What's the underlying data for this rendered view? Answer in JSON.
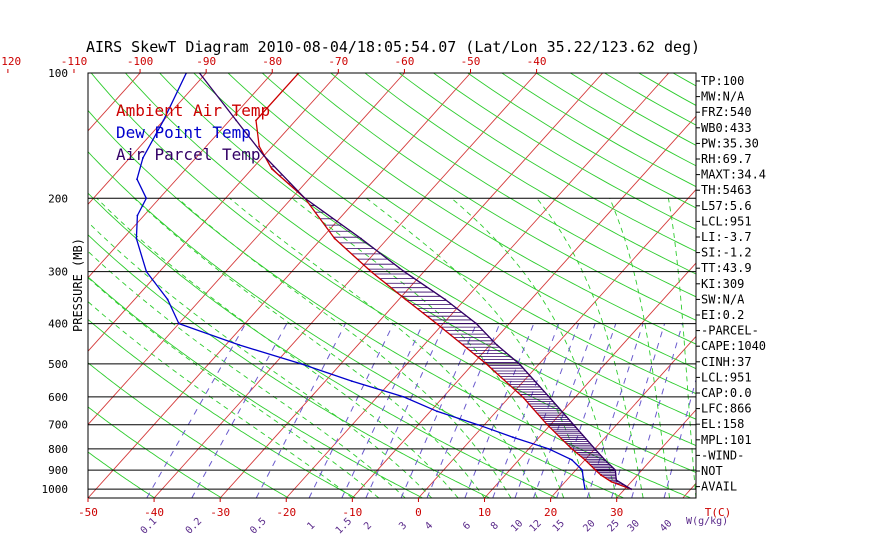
{
  "chart_data": {
    "type": "line",
    "title": "AIRS SkewT Diagram 2010-08-04/18:05:54.07 (Lat/Lon 35.22/123.62 deg)",
    "ylabel": "PRESSURE (MB)",
    "xlabel": "T(C)",
    "mixing_label": "W(g/kg)",
    "pressure_levels": [
      100,
      200,
      300,
      400,
      500,
      600,
      700,
      800,
      900,
      1000
    ],
    "top_temp_ticks": [
      -120,
      -110,
      -100,
      -90,
      -80,
      -70,
      -60,
      -50,
      -40
    ],
    "bottom_temp_ticks": [
      -50,
      -40,
      -30,
      -20,
      -10,
      0,
      10,
      20,
      30
    ],
    "mixing_ratio_ticks": [
      "0.1",
      "0.2",
      "0.5",
      "1",
      "1.5",
      "2",
      "3",
      "4",
      "6",
      "8",
      "10",
      "12",
      "15",
      "20",
      "25",
      "30",
      "40"
    ],
    "temp_range_bottom": [
      -50,
      42
    ],
    "pressure_range": [
      100,
      1050
    ],
    "series": [
      {
        "name": "Ambient Air Temp",
        "color": "#cc0000",
        "points": [
          [
            1000,
            31
          ],
          [
            960,
            27
          ],
          [
            925,
            24.5
          ],
          [
            900,
            23
          ],
          [
            850,
            20
          ],
          [
            800,
            16.5
          ],
          [
            700,
            9.5
          ],
          [
            600,
            2
          ],
          [
            500,
            -8
          ],
          [
            400,
            -21
          ],
          [
            350,
            -29
          ],
          [
            300,
            -38
          ],
          [
            250,
            -48
          ],
          [
            200,
            -58
          ],
          [
            170,
            -67
          ],
          [
            150,
            -72
          ],
          [
            130,
            -76
          ],
          [
            100,
            -76
          ]
        ]
      },
      {
        "name": "Dew Point Temp",
        "color": "#0000cc",
        "points": [
          [
            1000,
            24
          ],
          [
            950,
            22.5
          ],
          [
            900,
            21
          ],
          [
            850,
            18
          ],
          [
            800,
            13
          ],
          [
            750,
            6
          ],
          [
            700,
            -1
          ],
          [
            650,
            -9
          ],
          [
            600,
            -16
          ],
          [
            550,
            -26
          ],
          [
            500,
            -36
          ],
          [
            450,
            -48
          ],
          [
            400,
            -60
          ],
          [
            350,
            -65
          ],
          [
            300,
            -72
          ],
          [
            250,
            -78
          ],
          [
            220,
            -81
          ],
          [
            200,
            -82
          ],
          [
            180,
            -86
          ],
          [
            160,
            -88
          ],
          [
            130,
            -90
          ],
          [
            100,
            -93
          ]
        ]
      },
      {
        "name": "Air Parcel Temp",
        "color": "#330066",
        "points": [
          [
            1000,
            31
          ],
          [
            951,
            27.5
          ],
          [
            900,
            26
          ],
          [
            850,
            23
          ],
          [
            800,
            20
          ],
          [
            700,
            13.5
          ],
          [
            600,
            6
          ],
          [
            500,
            -3
          ],
          [
            450,
            -9
          ],
          [
            400,
            -15
          ],
          [
            350,
            -23
          ],
          [
            300,
            -33
          ],
          [
            250,
            -44
          ],
          [
            200,
            -58
          ],
          [
            158,
            -70
          ],
          [
            130,
            -79
          ],
          [
            100,
            -91
          ]
        ]
      }
    ],
    "wind_note": [
      "NOT",
      "AVAIL"
    ],
    "stats": [
      "TP:100",
      "MW:N/A",
      "FRZ:540",
      "WB0:433",
      "PW:35.30",
      "RH:69.7",
      "MAXT:34.4",
      "TH:5463",
      "L57:5.6",
      "LCL:951",
      "LI:-3.7",
      "SI:-1.2",
      "TT:43.9",
      "KI:309",
      "SW:N/A",
      "EI:0.2",
      "-PARCEL-",
      "CAPE:1040",
      "CINH:37",
      "LCL:951",
      "CAP:0.0",
      "LFC:866",
      "EL:158",
      "MPL:101",
      "-WIND-",
      "NOT",
      "AVAIL"
    ],
    "colors": {
      "isotherm": "#d43a3a",
      "dry_adiabat": "#2ecc2e",
      "moist_adiabat": "#2ecc2e",
      "mixing_ratio": "#6a5acd",
      "isobar": "#000000",
      "hatch": "#330066"
    }
  }
}
